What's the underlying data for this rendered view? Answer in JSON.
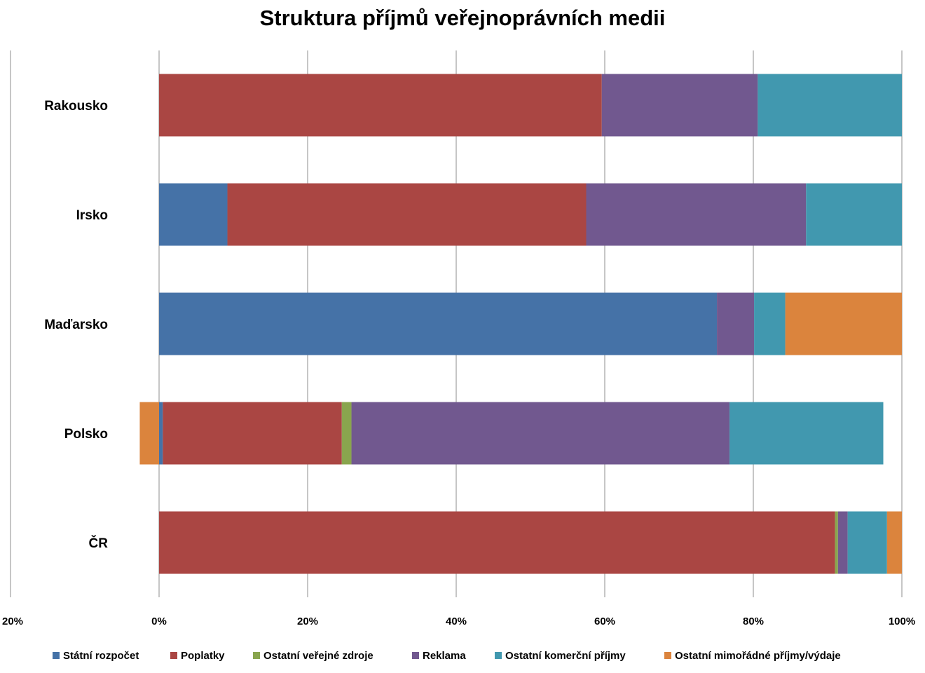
{
  "chart_data": {
    "type": "bar",
    "orientation": "horizontal",
    "stacked": "percent",
    "title": "Struktura příjmů veřejnoprávních medii",
    "categories": [
      "Rakousko",
      "Irsko",
      "Maďarsko",
      "Polsko",
      "ČR"
    ],
    "xlim": [
      -20,
      100
    ],
    "x_ticks": [
      "20%",
      "0%",
      "20%",
      "40%",
      "60%",
      "80%",
      "100%"
    ],
    "grid": true,
    "legend_position": "bottom",
    "series": [
      {
        "name": "Státní rozpočet",
        "color": "#4572A7",
        "values": [
          0,
          9.2,
          75.1,
          0.5,
          0
        ]
      },
      {
        "name": "Poplatky",
        "color": "#AA4643",
        "values": [
          59.6,
          48.3,
          0,
          24.1,
          91.0
        ]
      },
      {
        "name": "Ostatní veřejné zdroje",
        "color": "#89A54E",
        "values": [
          0,
          0,
          0,
          1.3,
          0.4
        ]
      },
      {
        "name": "Reklama",
        "color": "#71588F",
        "values": [
          21.0,
          29.6,
          5.0,
          50.9,
          1.3
        ]
      },
      {
        "name": "Ostatní komerční  příjmy",
        "color": "#4198AF",
        "values": [
          19.4,
          12.9,
          4.2,
          20.7,
          5.3
        ]
      },
      {
        "name": "Ostatní mimořádné  příjmy/výdaje",
        "color": "#DB843D",
        "values": [
          0,
          0,
          15.7,
          -2.6,
          2.0
        ]
      }
    ]
  }
}
